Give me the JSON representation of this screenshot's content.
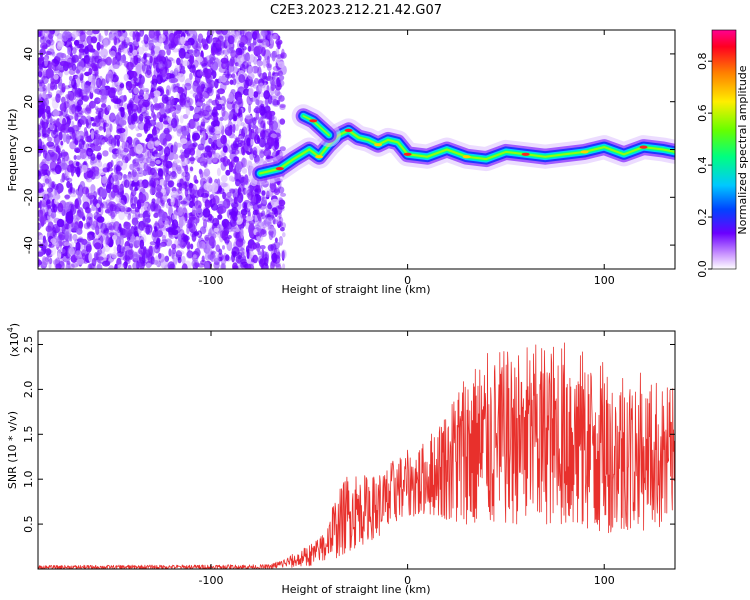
{
  "title": "C2E3.2023.212.21.42.G07",
  "chart_data": [
    {
      "type": "heatmap",
      "xlabel": "Height of straight line (km)",
      "ylabel": "Frequency (Hz)",
      "xlim": [
        -188,
        136
      ],
      "ylim": [
        -50,
        50
      ],
      "xticks": [
        -100,
        0,
        100
      ],
      "yticks": [
        -40,
        -20,
        0,
        20,
        40
      ],
      "colorbar": {
        "label": "Normalized spectral amplitude",
        "range": [
          0,
          0.92
        ],
        "ticks": [
          0.0,
          0.2,
          0.4,
          0.6,
          0.8
        ]
      },
      "noise_region_x": [
        -188,
        -67
      ],
      "signal_track": [
        {
          "x": -75,
          "y": -10
        },
        {
          "x": -65,
          "y": -8
        },
        {
          "x": -58,
          "y": -4
        },
        {
          "x": -50,
          "y": 0
        },
        {
          "x": -45,
          "y": -3
        },
        {
          "x": -40,
          "y": 2
        },
        {
          "x": -35,
          "y": 6
        },
        {
          "x": -30,
          "y": 8
        },
        {
          "x": -25,
          "y": 5
        },
        {
          "x": -20,
          "y": 4
        },
        {
          "x": -15,
          "y": 2
        },
        {
          "x": -10,
          "y": 4
        },
        {
          "x": -5,
          "y": 3
        },
        {
          "x": 0,
          "y": -2
        },
        {
          "x": 10,
          "y": -3
        },
        {
          "x": 20,
          "y": 0
        },
        {
          "x": 30,
          "y": -3
        },
        {
          "x": 40,
          "y": -4
        },
        {
          "x": 50,
          "y": -1
        },
        {
          "x": 60,
          "y": -2
        },
        {
          "x": 70,
          "y": -3
        },
        {
          "x": 80,
          "y": -2
        },
        {
          "x": 90,
          "y": -1
        },
        {
          "x": 100,
          "y": 1
        },
        {
          "x": 110,
          "y": -2
        },
        {
          "x": 120,
          "y": 1
        },
        {
          "x": 130,
          "y": 0
        },
        {
          "x": 136,
          "y": -1
        }
      ],
      "upper_branch": [
        {
          "x": -53,
          "y": 14
        },
        {
          "x": -48,
          "y": 12
        },
        {
          "x": -44,
          "y": 9
        },
        {
          "x": -40,
          "y": 6
        }
      ]
    },
    {
      "type": "line",
      "xlabel": "Height of straight line (km)",
      "ylabel": "SNR (10 * v/v)",
      "y_multiplier": "(x10",
      "y_multiplier_exp": "4",
      "xlim": [
        -188,
        136
      ],
      "ylim": [
        0,
        2.65
      ],
      "xticks": [
        -100,
        0,
        100
      ],
      "yticks": [
        0.5,
        1.0,
        1.5,
        2.0,
        2.5
      ],
      "ytick_labels": [
        "0.5",
        "1.0",
        "1.5",
        "2.0",
        "2.5"
      ],
      "series": [
        {
          "color": "#e8302c",
          "envelope": [
            {
              "x": -188,
              "lo": 0.0,
              "hi": 0.04
            },
            {
              "x": -70,
              "lo": 0.0,
              "hi": 0.05
            },
            {
              "x": -55,
              "lo": 0.02,
              "hi": 0.2
            },
            {
              "x": -45,
              "lo": 0.05,
              "hi": 0.35
            },
            {
              "x": -38,
              "lo": 0.1,
              "hi": 0.75
            },
            {
              "x": -30,
              "lo": 0.2,
              "hi": 1.1
            },
            {
              "x": -20,
              "lo": 0.3,
              "hi": 1.05
            },
            {
              "x": -12,
              "lo": 0.4,
              "hi": 1.1
            },
            {
              "x": -5,
              "lo": 0.5,
              "hi": 1.3
            },
            {
              "x": 5,
              "lo": 0.6,
              "hi": 1.35
            },
            {
              "x": 15,
              "lo": 0.6,
              "hi": 1.6
            },
            {
              "x": 25,
              "lo": 0.5,
              "hi": 2.1
            },
            {
              "x": 40,
              "lo": 0.5,
              "hi": 2.4
            },
            {
              "x": 60,
              "lo": 0.5,
              "hi": 2.5
            },
            {
              "x": 80,
              "lo": 0.5,
              "hi": 2.55
            },
            {
              "x": 100,
              "lo": 0.4,
              "hi": 2.3
            },
            {
              "x": 120,
              "lo": 0.4,
              "hi": 2.2
            },
            {
              "x": 136,
              "lo": 0.5,
              "hi": 2.0
            }
          ]
        }
      ]
    }
  ]
}
